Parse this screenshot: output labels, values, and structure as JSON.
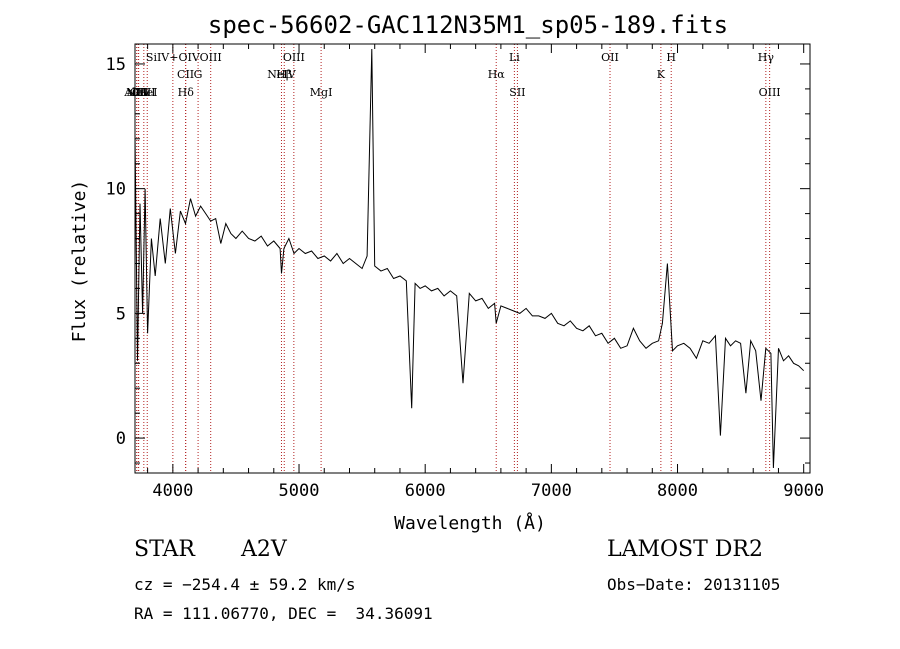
{
  "chart_data": {
    "type": "line",
    "title": "spec-56602-GAC112N35M1_sp05-189.fits",
    "xlabel": "Wavelength (Å)",
    "ylabel": "Flux (relative)",
    "xlim": [
      3700,
      9050
    ],
    "ylim": [
      -1.4,
      15.8
    ],
    "xticks": [
      4000,
      5000,
      6000,
      7000,
      8000,
      9000
    ],
    "yticks": [
      0,
      5,
      10,
      15
    ],
    "grid": false,
    "line_color": "#000000",
    "marker_color": "#b22222",
    "x": [
      3700,
      3720,
      3740,
      3760,
      3780,
      3800,
      3830,
      3860,
      3900,
      3940,
      3980,
      4020,
      4060,
      4100,
      4140,
      4180,
      4220,
      4260,
      4300,
      4340,
      4380,
      4420,
      4460,
      4500,
      4550,
      4600,
      4650,
      4700,
      4750,
      4800,
      4850,
      4861,
      4880,
      4920,
      4960,
      5000,
      5050,
      5100,
      5150,
      5200,
      5250,
      5300,
      5350,
      5400,
      5450,
      5500,
      5540,
      5577,
      5600,
      5650,
      5700,
      5750,
      5800,
      5850,
      5893,
      5920,
      5960,
      6000,
      6050,
      6100,
      6150,
      6200,
      6250,
      6300,
      6350,
      6400,
      6450,
      6500,
      6550,
      6563,
      6600,
      6650,
      6700,
      6750,
      6800,
      6850,
      6900,
      6950,
      7000,
      7050,
      7100,
      7150,
      7200,
      7250,
      7300,
      7350,
      7400,
      7450,
      7500,
      7550,
      7600,
      7650,
      7700,
      7750,
      7800,
      7850,
      7880,
      7920,
      7960,
      8000,
      8050,
      8100,
      8150,
      8200,
      8250,
      8300,
      8340,
      8380,
      8420,
      8460,
      8500,
      8542,
      8580,
      8620,
      8662,
      8700,
      8740,
      8760,
      8800,
      8840,
      8880,
      8920,
      8960,
      9000
    ],
    "y": [
      12.2,
      3.1,
      9.4,
      5.0,
      10.0,
      4.2,
      8.0,
      6.5,
      8.8,
      7.0,
      9.2,
      7.4,
      9.1,
      8.6,
      9.6,
      8.9,
      9.3,
      9.0,
      8.7,
      8.8,
      7.8,
      8.6,
      8.2,
      8.0,
      8.3,
      8.0,
      7.9,
      8.1,
      7.7,
      7.9,
      7.6,
      6.6,
      7.6,
      8.0,
      7.4,
      7.6,
      7.4,
      7.5,
      7.2,
      7.3,
      7.1,
      7.4,
      7.0,
      7.2,
      7.0,
      6.8,
      7.3,
      15.6,
      6.9,
      6.7,
      6.8,
      6.4,
      6.5,
      6.3,
      1.2,
      6.2,
      6.0,
      6.1,
      5.9,
      6.0,
      5.7,
      5.9,
      5.7,
      2.2,
      5.8,
      5.5,
      5.6,
      5.2,
      5.4,
      4.6,
      5.3,
      5.2,
      5.1,
      5.0,
      5.2,
      4.9,
      4.9,
      4.8,
      5.0,
      4.6,
      4.5,
      4.7,
      4.4,
      4.3,
      4.5,
      4.1,
      4.2,
      3.8,
      4.0,
      3.6,
      3.7,
      4.4,
      3.9,
      3.6,
      3.8,
      3.9,
      4.6,
      7.0,
      3.5,
      3.7,
      3.8,
      3.6,
      3.2,
      3.9,
      3.8,
      4.1,
      0.1,
      4.0,
      3.7,
      3.9,
      3.8,
      1.8,
      3.9,
      3.5,
      1.5,
      3.6,
      3.4,
      -1.2,
      3.6,
      3.1,
      3.3,
      3.0,
      2.9,
      2.7
    ]
  },
  "lines": [
    {
      "label": "AlIII",
      "wavelength": 3713,
      "row": 3
    },
    {
      "label": "NeV",
      "wavelength": 3726,
      "row": 3
    },
    {
      "label": "OII",
      "wavelength": 3729,
      "row": 3
    },
    {
      "label": "CaII",
      "wavelength": 3770,
      "row": 3
    },
    {
      "label": "HeI",
      "wavelength": 3797,
      "row": 3
    },
    {
      "label": "SiIV+OIV",
      "wavelength": 4000,
      "row": 1
    },
    {
      "label": "CII",
      "wavelength": 4101,
      "row": 2
    },
    {
      "label": "Hδ",
      "wavelength": 4102,
      "row": 3
    },
    {
      "label": "G",
      "wavelength": 4200,
      "row": 2
    },
    {
      "label": "OIII",
      "wavelength": 4300,
      "row": 1
    },
    {
      "label": "NeIV",
      "wavelength": 4861,
      "row": 2
    },
    {
      "label": "Hβ",
      "wavelength": 4883,
      "row": 2
    },
    {
      "label": "OIII",
      "wavelength": 4959,
      "row": 1
    },
    {
      "label": "MgI",
      "wavelength": 5175,
      "row": 3
    },
    {
      "label": "Hα",
      "wavelength": 6563,
      "row": 2
    },
    {
      "label": "Li",
      "wavelength": 6707,
      "row": 1
    },
    {
      "label": "SII",
      "wavelength": 6731,
      "row": 3
    },
    {
      "label": "OII",
      "wavelength": 7465,
      "row": 1
    },
    {
      "label": "K",
      "wavelength": 7868,
      "row": 2
    },
    {
      "label": "H",
      "wavelength": 7950,
      "row": 1
    },
    {
      "label": "Hγ",
      "wavelength": 8700,
      "row": 1
    },
    {
      "label": "OIII",
      "wavelength": 8730,
      "row": 3
    }
  ],
  "info": {
    "object_class": "STAR",
    "subclass": "A2V",
    "survey": "LAMOST DR2",
    "cz": "cz = −254.4 ± 59.2 km/s",
    "obs_date": "Obs−Date: 20131105",
    "coords": "RA = 111.06770, DEC =  34.36091"
  }
}
